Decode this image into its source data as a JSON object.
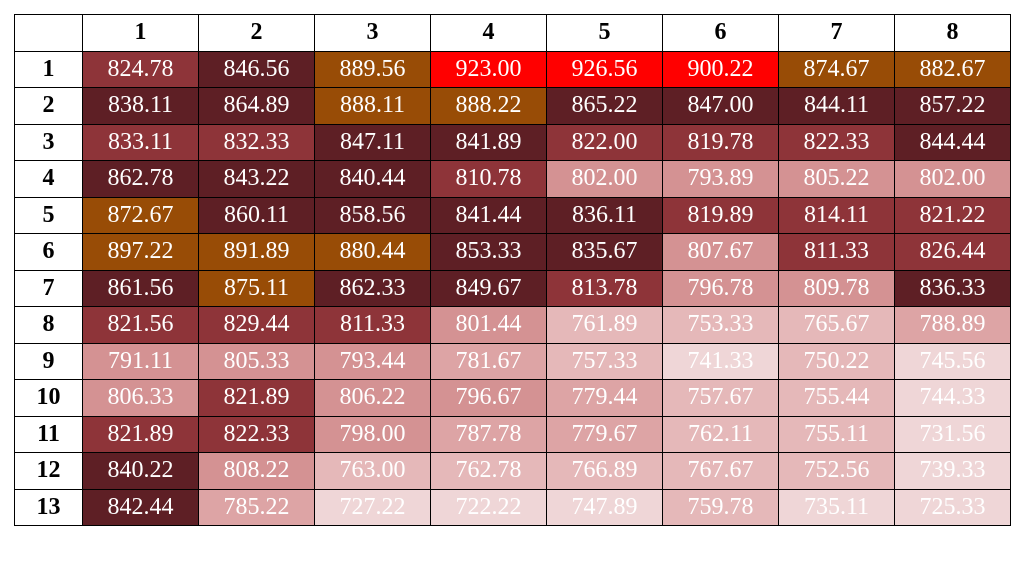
{
  "chart_data": {
    "type": "heatmap",
    "columns": [
      "1",
      "2",
      "3",
      "4",
      "5",
      "6",
      "7",
      "8"
    ],
    "rows": [
      "1",
      "2",
      "3",
      "4",
      "5",
      "6",
      "7",
      "8",
      "9",
      "10",
      "11",
      "12",
      "13"
    ],
    "cells": [
      [
        "824.78",
        "846.56",
        "889.56",
        "923.00",
        "926.56",
        "900.22",
        "874.67",
        "882.67"
      ],
      [
        "838.11",
        "864.89",
        "888.11",
        "888.22",
        "865.22",
        "847.00",
        "844.11",
        "857.22"
      ],
      [
        "833.11",
        "832.33",
        "847.11",
        "841.89",
        "822.00",
        "819.78",
        "822.33",
        "844.44"
      ],
      [
        "862.78",
        "843.22",
        "840.44",
        "810.78",
        "802.00",
        "793.89",
        "805.22",
        "802.00"
      ],
      [
        "872.67",
        "860.11",
        "858.56",
        "841.44",
        "836.11",
        "819.89",
        "814.11",
        "821.22"
      ],
      [
        "897.22",
        "891.89",
        "880.44",
        "853.33",
        "835.67",
        "807.67",
        "811.33",
        "826.44"
      ],
      [
        "861.56",
        "875.11",
        "862.33",
        "849.67",
        "813.78",
        "796.78",
        "809.78",
        "836.33"
      ],
      [
        "821.56",
        "829.44",
        "811.33",
        "801.44",
        "761.89",
        "753.33",
        "765.67",
        "788.89"
      ],
      [
        "791.11",
        "805.33",
        "793.44",
        "781.67",
        "757.33",
        "741.33",
        "750.22",
        "745.56"
      ],
      [
        "806.33",
        "821.89",
        "806.22",
        "796.67",
        "779.44",
        "757.67",
        "755.44",
        "744.33"
      ],
      [
        "821.89",
        "822.33",
        "798.00",
        "787.78",
        "779.67",
        "762.11",
        "755.11",
        "731.56"
      ],
      [
        "840.22",
        "808.22",
        "763.00",
        "762.78",
        "766.89",
        "767.67",
        "752.56",
        "739.33"
      ],
      [
        "842.44",
        "785.22",
        "727.22",
        "722.22",
        "747.89",
        "759.78",
        "735.11",
        "725.33"
      ]
    ],
    "color_scale": [
      {
        "min": 900,
        "color": "#ff0000"
      },
      {
        "min": 870,
        "color": "#984c06"
      },
      {
        "min": 835,
        "color": "#5e1f25"
      },
      {
        "min": 810,
        "color": "#8e3439"
      },
      {
        "min": 790,
        "color": "#d49293"
      },
      {
        "min": 770,
        "color": "#dda4a5"
      },
      {
        "min": 750,
        "color": "#e5b8b9"
      },
      {
        "min": 700,
        "color": "#efd6d7"
      }
    ]
  }
}
